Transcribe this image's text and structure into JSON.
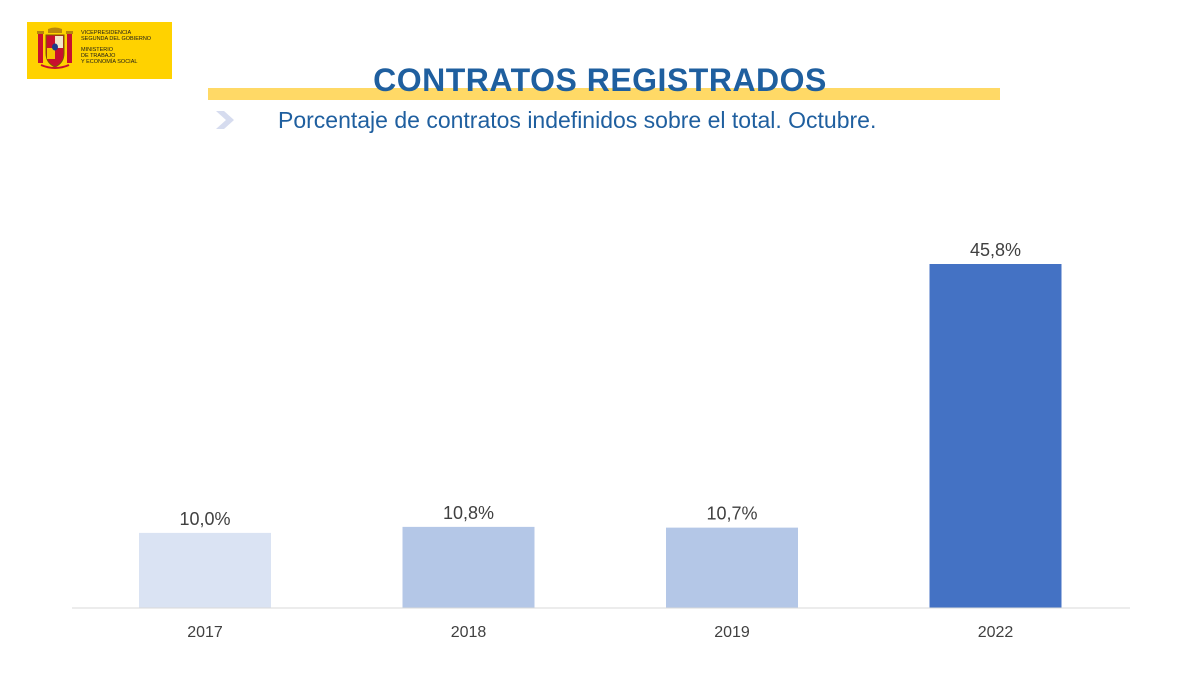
{
  "logo": {
    "lines": [
      "VICEPRESIDENCIA",
      "SEGUNDA DEL GOBIERNO",
      "MINISTERIO",
      "DE TRABAJO",
      "Y ECONOMÍA SOCIAL"
    ],
    "icon": "coat-of-arms-icon",
    "background": "#ffd200"
  },
  "header": {
    "title": "CONTRATOS REGISTRADOS",
    "subtitle": "Porcentaje de contratos indefinidos sobre el total. Octubre.",
    "bullet_icon": "chevron-right-icon"
  },
  "colors": {
    "title": "#1f5f9f",
    "title_underline": "#ffd966",
    "bar_2017": "#dae3f3",
    "bar_2018_2019": "#b4c7e7",
    "bar_2022": "#4472c4"
  },
  "chart_data": {
    "type": "bar",
    "categories": [
      "2017",
      "2018",
      "2019",
      "2022"
    ],
    "values": [
      10.0,
      10.8,
      10.7,
      45.8
    ],
    "labels": [
      "10,0%",
      "10,8%",
      "10,7%",
      "45,8%"
    ],
    "colors": [
      "#dae3f3",
      "#b4c7e7",
      "#b4c7e7",
      "#4472c4"
    ],
    "title": "",
    "xlabel": "",
    "ylabel": "",
    "ylim": [
      0,
      50
    ],
    "grid": false,
    "legend": "none"
  }
}
